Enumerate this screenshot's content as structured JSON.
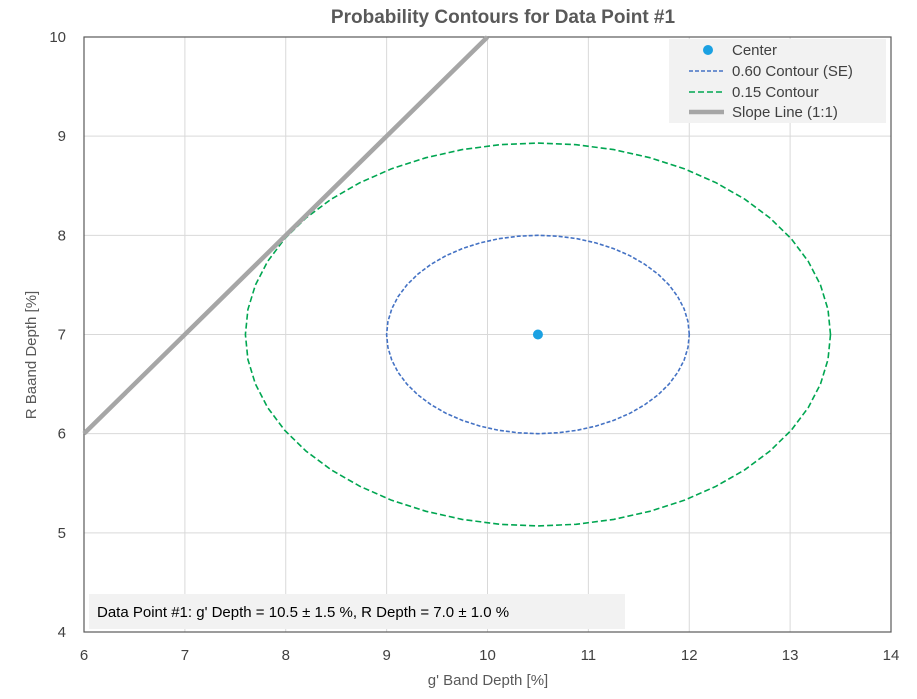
{
  "chart_data": {
    "type": "scatter",
    "title": "Probability Contours for Data Point #1",
    "xlabel": "g' Band Depth [%]",
    "ylabel": "R Baand Depth [%]",
    "xlim": [
      6,
      14
    ],
    "ylim": [
      4,
      10
    ],
    "xticks": [
      "6",
      "7",
      "8",
      "9",
      "10",
      "11",
      "12",
      "13",
      "14"
    ],
    "yticks": [
      "4",
      "5",
      "6",
      "7",
      "8",
      "9",
      "10"
    ],
    "grid": true,
    "legend_position": "top-right",
    "center": {
      "x": 10.5,
      "y": 7.0
    },
    "contours": [
      {
        "name": "0.60 Contour (SE)",
        "cx": 10.5,
        "cy": 7.0,
        "rx": 1.5,
        "ry": 1.0,
        "color": "#4472c4",
        "dash": "short-dash"
      },
      {
        "name": "0.15 Contour",
        "cx": 10.5,
        "cy": 7.0,
        "rx": 2.9,
        "ry": 1.93,
        "color": "#00a651",
        "dash": "dash"
      }
    ],
    "slope_line": {
      "name": "Slope Line (1:1)",
      "x": [
        6,
        10
      ],
      "y": [
        6,
        10
      ],
      "color": "#a6a6a6"
    },
    "series": [
      {
        "name": "Center",
        "color": "#1ba1e2",
        "marker": "circle"
      },
      {
        "name": "0.60 Contour (SE)",
        "color": "#4472c4"
      },
      {
        "name": "0.15 Contour",
        "color": "#00a651"
      },
      {
        "name": "Slope Line (1:1)",
        "color": "#a6a6a6"
      }
    ],
    "annotation": "Data Point #1: g' Depth = 10.5 ± 1.5 %, R Depth = 7.0 ± 1.0 %"
  }
}
